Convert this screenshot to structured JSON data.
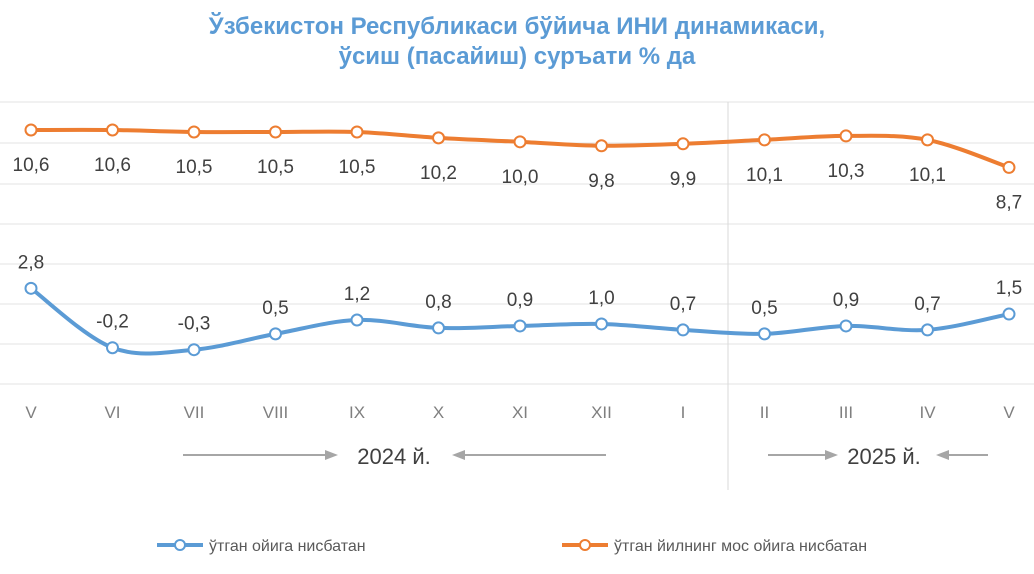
{
  "chart_data": {
    "type": "line",
    "title_line1": "Ўзбекистон Республикаси бўйича ИНИ динамикаси,",
    "title_line2": "ўсиш (пасайиш) суръати % да",
    "categories": [
      "V",
      "VI",
      "VII",
      "VIII",
      "IX",
      "X",
      "XI",
      "XII",
      "I",
      "II",
      "III",
      "IV",
      "V"
    ],
    "year_labels": [
      "2024 й.",
      "2025 й."
    ],
    "series": [
      {
        "name": "ўтган йилнинг мос ойига нисбатан",
        "color": "#ed7d31",
        "values": [
          10.6,
          10.6,
          10.5,
          10.5,
          10.5,
          10.2,
          10.0,
          9.8,
          9.9,
          10.1,
          10.3,
          10.1,
          8.7
        ],
        "labels": [
          "10,6",
          "10,6",
          "10,5",
          "10,5",
          "10,5",
          "10,2",
          "10,0",
          "9,8",
          "9,9",
          "10,1",
          "10,3",
          "10,1",
          "8,7"
        ]
      },
      {
        "name": "ўтган ойига нисбатан",
        "color": "#5b9bd5",
        "values": [
          2.8,
          -0.2,
          -0.3,
          0.5,
          1.2,
          0.8,
          0.9,
          1.0,
          0.7,
          0.5,
          0.9,
          0.7,
          1.5
        ],
        "labels": [
          "2,8",
          "-0,2",
          "-0,3",
          "0,5",
          "1,2",
          "0,8",
          "0,9",
          "1,0",
          "0,7",
          "0,5",
          "0,9",
          "0,7",
          "1,5"
        ]
      }
    ],
    "grid": true,
    "legend_position": "bottom"
  }
}
